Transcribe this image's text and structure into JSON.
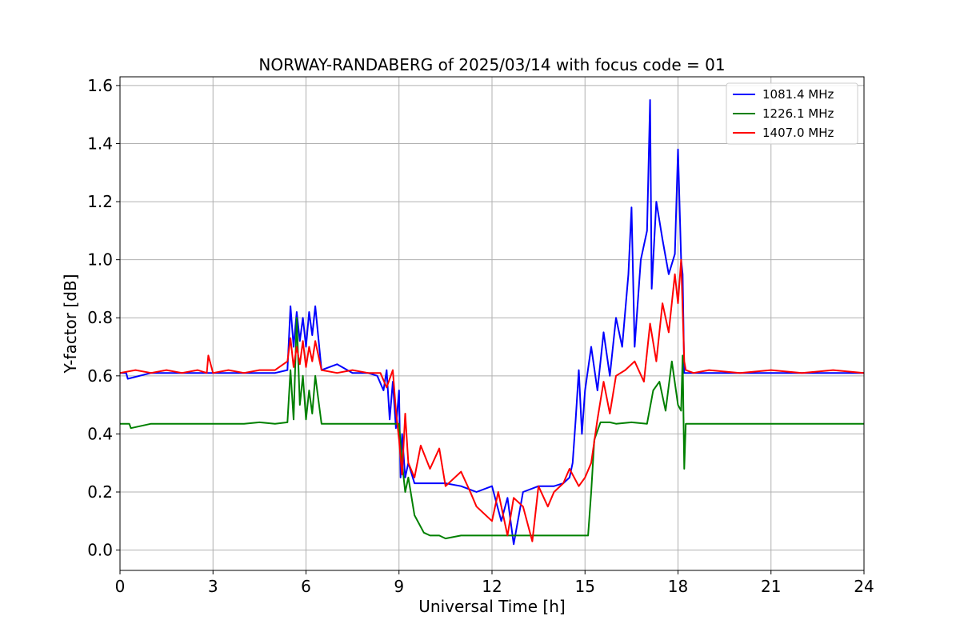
{
  "chart_data": {
    "type": "line",
    "title": "NORWAY-RANDABERG of 2025/03/14 with focus code = 01",
    "xlabel": "Universal Time [h]",
    "ylabel": "Y-factor [dB]",
    "xlim": [
      0,
      24
    ],
    "ylim": [
      -0.07,
      1.63
    ],
    "xticks": [
      0,
      3,
      6,
      9,
      12,
      15,
      18,
      21,
      24
    ],
    "xtick_labels": [
      "0",
      "3",
      "6",
      "9",
      "12",
      "15",
      "18",
      "21",
      "24"
    ],
    "yticks": [
      0.0,
      0.2,
      0.4,
      0.6,
      0.8,
      1.0,
      1.2,
      1.4,
      1.6
    ],
    "ytick_labels": [
      "0.0",
      "0.2",
      "0.4",
      "0.6",
      "0.8",
      "1.0",
      "1.2",
      "1.4",
      "1.6"
    ],
    "grid": true,
    "legend_position": "top-right",
    "series": [
      {
        "name": "1081.4 MHz",
        "color": "#0000ff",
        "x": [
          0,
          0.2,
          0.25,
          1,
          2,
          3,
          4,
          5,
          5.4,
          5.5,
          5.6,
          5.7,
          5.8,
          5.9,
          6.0,
          6.1,
          6.2,
          6.3,
          6.5,
          7.0,
          7.5,
          8.0,
          8.3,
          8.5,
          8.6,
          8.7,
          8.8,
          8.9,
          9.0,
          9.05,
          9.1,
          9.2,
          9.3,
          9.5,
          10.0,
          10.5,
          11.0,
          11.5,
          12.0,
          12.3,
          12.5,
          12.7,
          13.0,
          13.5,
          14.0,
          14.3,
          14.5,
          14.6,
          14.7,
          14.8,
          14.9,
          15.0,
          15.2,
          15.4,
          15.6,
          15.8,
          16.0,
          16.2,
          16.4,
          16.5,
          16.6,
          16.8,
          17.0,
          17.1,
          17.15,
          17.3,
          17.5,
          17.7,
          17.9,
          18.0,
          18.1,
          18.15,
          18.2,
          18.25,
          18.5,
          19,
          20,
          21,
          22,
          23,
          24
        ],
        "y": [
          0.61,
          0.61,
          0.59,
          0.61,
          0.61,
          0.61,
          0.61,
          0.61,
          0.62,
          0.84,
          0.7,
          0.82,
          0.72,
          0.8,
          0.7,
          0.82,
          0.74,
          0.84,
          0.62,
          0.64,
          0.61,
          0.61,
          0.6,
          0.55,
          0.62,
          0.45,
          0.58,
          0.42,
          0.55,
          0.25,
          0.4,
          0.25,
          0.3,
          0.23,
          0.23,
          0.23,
          0.22,
          0.2,
          0.22,
          0.1,
          0.18,
          0.02,
          0.2,
          0.22,
          0.22,
          0.23,
          0.25,
          0.3,
          0.45,
          0.62,
          0.4,
          0.55,
          0.7,
          0.55,
          0.75,
          0.6,
          0.8,
          0.7,
          0.95,
          1.18,
          0.7,
          1.0,
          1.1,
          1.55,
          0.9,
          1.2,
          1.07,
          0.95,
          1.02,
          1.38,
          1.0,
          0.95,
          0.61,
          0.61,
          0.61,
          0.61,
          0.61,
          0.61,
          0.61,
          0.61,
          0.61
        ]
      },
      {
        "name": "1226.1 MHz",
        "color": "#008000",
        "x": [
          0,
          0.3,
          0.35,
          1,
          2,
          3,
          4,
          4.5,
          5,
          5.4,
          5.5,
          5.6,
          5.7,
          5.8,
          5.9,
          6.0,
          6.1,
          6.2,
          6.3,
          6.5,
          7.0,
          7.5,
          8.0,
          8.5,
          8.8,
          9.0,
          9.1,
          9.2,
          9.3,
          9.5,
          9.8,
          10.0,
          10.3,
          10.5,
          11.0,
          11.5,
          12.0,
          12.5,
          13.0,
          13.5,
          14.0,
          14.5,
          14.8,
          15.0,
          15.1,
          15.2,
          15.3,
          15.5,
          15.8,
          16.0,
          16.5,
          17.0,
          17.2,
          17.4,
          17.6,
          17.8,
          18.0,
          18.1,
          18.15,
          18.2,
          18.25,
          18.3,
          19,
          20,
          21,
          22,
          23,
          24
        ],
        "y": [
          0.435,
          0.435,
          0.42,
          0.435,
          0.435,
          0.435,
          0.435,
          0.44,
          0.435,
          0.44,
          0.62,
          0.45,
          0.8,
          0.5,
          0.6,
          0.45,
          0.55,
          0.47,
          0.6,
          0.435,
          0.435,
          0.435,
          0.435,
          0.435,
          0.435,
          0.435,
          0.3,
          0.2,
          0.25,
          0.12,
          0.06,
          0.05,
          0.05,
          0.04,
          0.05,
          0.05,
          0.05,
          0.05,
          0.05,
          0.05,
          0.05,
          0.05,
          0.05,
          0.05,
          0.05,
          0.2,
          0.38,
          0.44,
          0.44,
          0.435,
          0.44,
          0.435,
          0.55,
          0.58,
          0.48,
          0.65,
          0.5,
          0.48,
          0.67,
          0.28,
          0.435,
          0.435,
          0.435,
          0.435,
          0.435,
          0.435,
          0.435,
          0.435
        ]
      },
      {
        "name": "1407.0 MHz",
        "color": "#ff0000",
        "x": [
          0,
          0.5,
          1,
          1.5,
          2,
          2.5,
          2.8,
          2.85,
          3,
          3.5,
          4,
          4.5,
          5,
          5.4,
          5.5,
          5.6,
          5.7,
          5.8,
          5.9,
          6.0,
          6.1,
          6.2,
          6.3,
          6.5,
          7.0,
          7.5,
          8.0,
          8.4,
          8.6,
          8.8,
          8.9,
          9.0,
          9.1,
          9.2,
          9.3,
          9.5,
          9.7,
          10.0,
          10.3,
          10.5,
          11.0,
          11.3,
          11.5,
          12.0,
          12.2,
          12.5,
          12.7,
          13.0,
          13.3,
          13.5,
          13.8,
          14.0,
          14.3,
          14.5,
          14.8,
          15.0,
          15.2,
          15.4,
          15.6,
          15.8,
          16.0,
          16.3,
          16.6,
          16.9,
          17.1,
          17.3,
          17.5,
          17.7,
          17.9,
          18.0,
          18.1,
          18.2,
          18.25,
          18.5,
          19,
          20,
          21,
          22,
          23,
          24
        ],
        "y": [
          0.61,
          0.62,
          0.61,
          0.62,
          0.61,
          0.62,
          0.61,
          0.67,
          0.61,
          0.62,
          0.61,
          0.62,
          0.62,
          0.65,
          0.73,
          0.63,
          0.7,
          0.64,
          0.72,
          0.63,
          0.7,
          0.65,
          0.72,
          0.62,
          0.61,
          0.62,
          0.61,
          0.61,
          0.56,
          0.62,
          0.48,
          0.38,
          0.26,
          0.47,
          0.3,
          0.25,
          0.36,
          0.28,
          0.35,
          0.22,
          0.27,
          0.2,
          0.15,
          0.1,
          0.2,
          0.05,
          0.18,
          0.15,
          0.03,
          0.22,
          0.15,
          0.2,
          0.23,
          0.28,
          0.22,
          0.25,
          0.3,
          0.45,
          0.58,
          0.47,
          0.6,
          0.62,
          0.65,
          0.58,
          0.78,
          0.65,
          0.85,
          0.75,
          0.95,
          0.85,
          1.0,
          0.65,
          0.62,
          0.61,
          0.62,
          0.61,
          0.62,
          0.61,
          0.62,
          0.61
        ]
      }
    ]
  }
}
